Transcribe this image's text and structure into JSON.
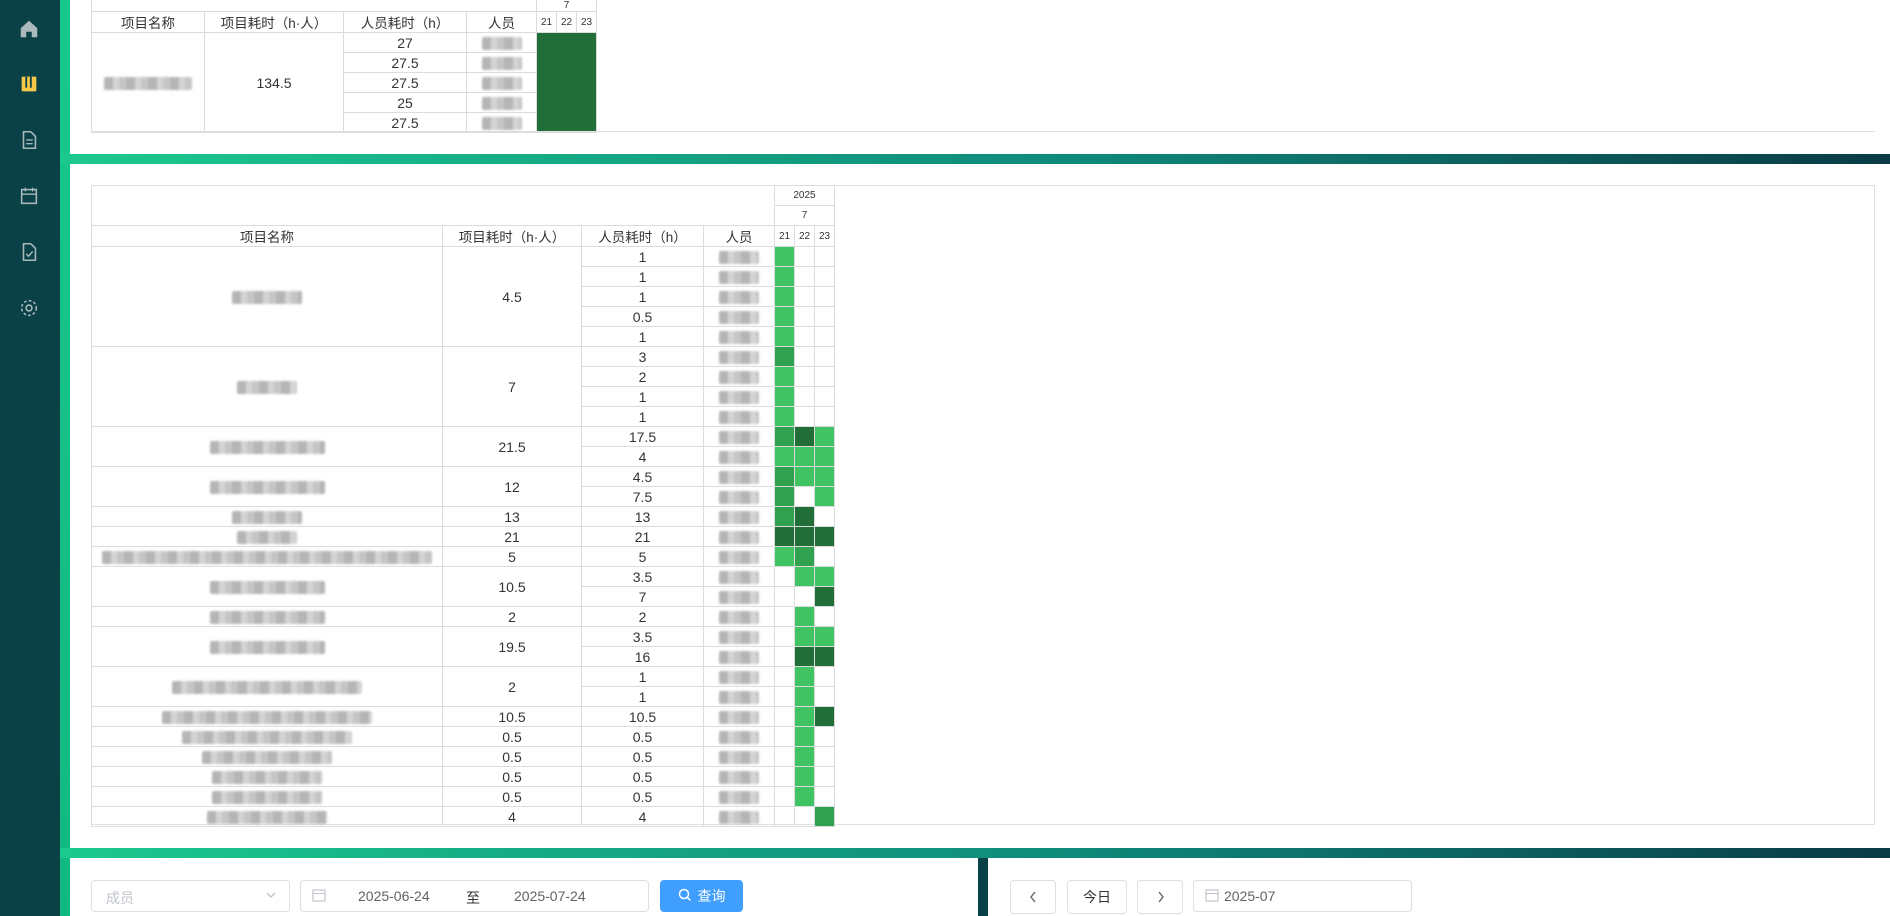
{
  "top_table": {
    "headers": {
      "project_name": "项目名称",
      "project_hours": "项目耗时（h·人）",
      "member_hours": "人员耗时（h）",
      "member": "人员"
    },
    "month": "7",
    "days": [
      "21",
      "22",
      "23"
    ],
    "project_total": "134.5",
    "member_hours": [
      "27",
      "27.5",
      "27.5",
      "25",
      "27.5"
    ]
  },
  "main_table": {
    "year": "2025",
    "month": "7",
    "days": [
      "21",
      "22",
      "23"
    ],
    "headers": {
      "project_name": "项目名称",
      "project_hours": "项目耗时（h·人）",
      "member_hours": "人员耗时（h）",
      "member": "人员"
    },
    "groups": [
      {
        "total": "4.5",
        "rows": [
          {
            "h": "1",
            "c": [
              "g1",
              "",
              ""
            ]
          },
          {
            "h": "1",
            "c": [
              "g1",
              "",
              ""
            ]
          },
          {
            "h": "1",
            "c": [
              "g1",
              "",
              ""
            ]
          },
          {
            "h": "0.5",
            "c": [
              "g1",
              "",
              ""
            ]
          },
          {
            "h": "1",
            "c": [
              "g1",
              "",
              ""
            ]
          }
        ]
      },
      {
        "total": "7",
        "rows": [
          {
            "h": "3",
            "c": [
              "g2",
              "",
              ""
            ]
          },
          {
            "h": "2",
            "c": [
              "g1",
              "",
              ""
            ]
          },
          {
            "h": "1",
            "c": [
              "g1",
              "",
              ""
            ]
          },
          {
            "h": "1",
            "c": [
              "g1",
              "",
              ""
            ]
          }
        ]
      },
      {
        "total": "21.5",
        "rows": [
          {
            "h": "17.5",
            "c": [
              "g2",
              "g3",
              "g1"
            ]
          },
          {
            "h": "4",
            "c": [
              "g1",
              "g1",
              "g1"
            ]
          }
        ]
      },
      {
        "total": "12",
        "rows": [
          {
            "h": "4.5",
            "c": [
              "g2",
              "g1",
              "g1"
            ]
          },
          {
            "h": "7.5",
            "c": [
              "g2",
              "",
              "g1"
            ]
          }
        ]
      },
      {
        "total": "13",
        "rows": [
          {
            "h": "13",
            "c": [
              "g2",
              "g3",
              ""
            ]
          }
        ]
      },
      {
        "total": "21",
        "rows": [
          {
            "h": "21",
            "c": [
              "g3",
              "g3",
              "g3"
            ]
          }
        ]
      },
      {
        "total": "5",
        "rows": [
          {
            "h": "5",
            "c": [
              "g1",
              "g2",
              ""
            ]
          }
        ]
      },
      {
        "total": "10.5",
        "rows": [
          {
            "h": "3.5",
            "c": [
              "",
              "g1",
              "g1"
            ]
          },
          {
            "h": "7",
            "c": [
              "",
              "",
              "g3"
            ]
          }
        ]
      },
      {
        "total": "2",
        "rows": [
          {
            "h": "2",
            "c": [
              "",
              "g1",
              ""
            ]
          }
        ]
      },
      {
        "total": "19.5",
        "rows": [
          {
            "h": "3.5",
            "c": [
              "",
              "g1",
              "g1"
            ]
          },
          {
            "h": "16",
            "c": [
              "",
              "g3",
              "g3"
            ]
          }
        ]
      },
      {
        "total": "2",
        "rows": [
          {
            "h": "1",
            "c": [
              "",
              "g1",
              ""
            ]
          },
          {
            "h": "1",
            "c": [
              "",
              "g1",
              ""
            ]
          }
        ]
      },
      {
        "total": "10.5",
        "rows": [
          {
            "h": "10.5",
            "c": [
              "",
              "g1",
              "g3"
            ]
          }
        ]
      },
      {
        "total": "0.5",
        "rows": [
          {
            "h": "0.5",
            "c": [
              "",
              "g1",
              ""
            ]
          }
        ]
      },
      {
        "total": "0.5",
        "rows": [
          {
            "h": "0.5",
            "c": [
              "",
              "g1",
              ""
            ]
          }
        ]
      },
      {
        "total": "0.5",
        "rows": [
          {
            "h": "0.5",
            "c": [
              "",
              "g1",
              ""
            ]
          }
        ]
      },
      {
        "total": "0.5",
        "rows": [
          {
            "h": "0.5",
            "c": [
              "",
              "g1",
              ""
            ]
          }
        ]
      },
      {
        "total": "4",
        "rows": [
          {
            "h": "4",
            "c": [
              "",
              "",
              "g2"
            ]
          }
        ]
      }
    ]
  },
  "filters": {
    "member_placeholder": "成员",
    "date_start": "2025-06-24",
    "date_sep": "至",
    "date_end": "2025-07-24",
    "query_label": "查询"
  },
  "calendar_nav": {
    "today_label": "今日",
    "month_value": "2025-07"
  },
  "icons": [
    "home-icon",
    "book-icon",
    "document-icon",
    "calendar-icon",
    "checklist-icon",
    "settings-icon"
  ],
  "colors": {
    "sidebar": "#0a4147",
    "accent": "#10b981",
    "primary": "#409eff",
    "heat_light": "#40c463",
    "heat_mid": "#30a14e",
    "heat_dark": "#216e39"
  }
}
